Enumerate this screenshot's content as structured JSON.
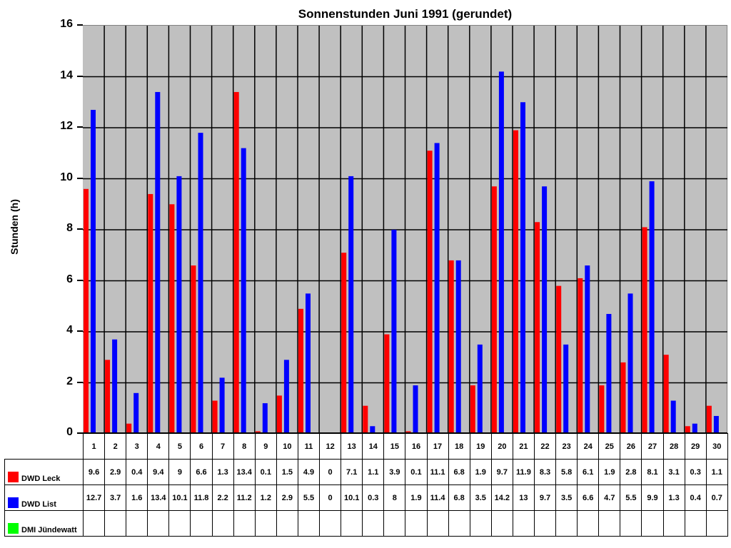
{
  "chart_data": {
    "type": "bar",
    "title": "Sonnenstunden Juni 1991 (gerundet)",
    "xlabel": "",
    "ylabel": "Stunden (h)",
    "ylim": [
      0,
      16
    ],
    "yticks": [
      0,
      2,
      4,
      6,
      8,
      10,
      12,
      14,
      16
    ],
    "grid": true,
    "legend_position": "table-left",
    "categories": [
      "1",
      "2",
      "3",
      "4",
      "5",
      "6",
      "7",
      "8",
      "9",
      "10",
      "11",
      "12",
      "13",
      "14",
      "15",
      "16",
      "17",
      "18",
      "19",
      "20",
      "21",
      "22",
      "23",
      "24",
      "25",
      "26",
      "27",
      "28",
      "29",
      "30"
    ],
    "series": [
      {
        "name": "DWD Leck",
        "color": "#ff0000",
        "values": [
          9.6,
          2.9,
          0.4,
          9.4,
          9,
          6.6,
          1.3,
          13.4,
          0.1,
          1.5,
          4.9,
          0,
          7.1,
          1.1,
          3.9,
          0.1,
          11.1,
          6.8,
          1.9,
          9.7,
          11.9,
          8.3,
          5.8,
          6.1,
          1.9,
          2.8,
          8.1,
          3.1,
          0.3,
          1.1
        ]
      },
      {
        "name": "DWD List",
        "color": "#0000ff",
        "values": [
          12.7,
          3.7,
          1.6,
          13.4,
          10.1,
          11.8,
          2.2,
          11.2,
          1.2,
          2.9,
          5.5,
          0,
          10.1,
          0.3,
          8,
          1.9,
          11.4,
          6.8,
          3.5,
          14.2,
          13,
          9.7,
          3.5,
          6.6,
          4.7,
          5.5,
          9.9,
          1.3,
          0.4,
          0.7
        ]
      },
      {
        "name": "DMI Jündewatt",
        "color": "#00ff00",
        "values": [
          null,
          null,
          null,
          null,
          null,
          null,
          null,
          null,
          null,
          null,
          null,
          null,
          null,
          null,
          null,
          null,
          null,
          null,
          null,
          null,
          null,
          null,
          null,
          null,
          null,
          null,
          null,
          null,
          null,
          null
        ]
      }
    ]
  }
}
